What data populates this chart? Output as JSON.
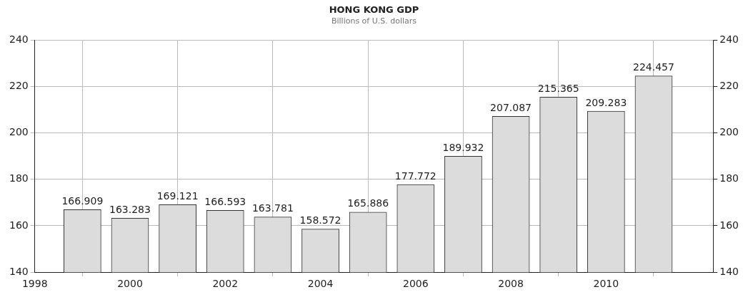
{
  "chart_data": {
    "type": "bar",
    "title": "HONG KONG GDP",
    "subtitle": "Billions of U.S. dollars",
    "x": [
      1999,
      2000,
      2001,
      2002,
      2003,
      2004,
      2005,
      2006,
      2007,
      2008,
      2009,
      2010,
      2011
    ],
    "values": [
      166.909,
      163.283,
      169.121,
      166.593,
      163.781,
      158.572,
      165.886,
      177.772,
      189.932,
      207.087,
      215.365,
      209.283,
      224.457
    ],
    "color": "#dcdcdc",
    "xlim": [
      1998,
      2012.25
    ],
    "xticks": [
      1998,
      2000,
      2002,
      2004,
      2006,
      2008,
      2010
    ],
    "ylim": [
      140,
      240
    ],
    "yticks": [
      140,
      160,
      180,
      200,
      220,
      240
    ],
    "y2lim": [
      140,
      240
    ],
    "y2ticks": [
      140,
      160,
      180,
      200,
      220,
      240
    ],
    "grid": true,
    "data_labels": true,
    "legend": false
  }
}
